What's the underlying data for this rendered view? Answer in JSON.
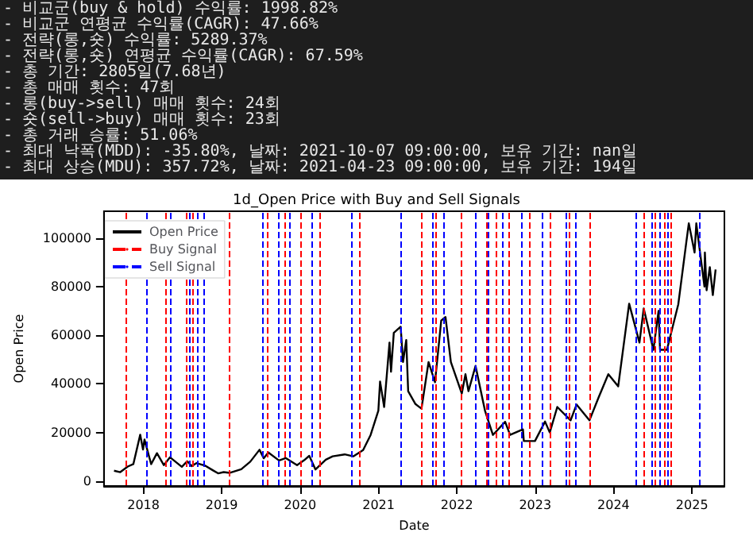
{
  "chart_data": {
    "type": "line",
    "title": "1d_Open Price with Buy and Sell Signals",
    "xlabel": "Date",
    "ylabel": "Open Price",
    "annotations": [
      "- 비교군(buy & hold) 수익률: 1998.82%",
      "- 비교군 연평균 수익률(CAGR): 47.66%",
      "- 전략(롱,숏) 수익률: 5289.37%",
      "- 전략(롱,숏) 연평균 수익률(CAGR): 67.59%",
      "- 총 기간: 2805일(7.68년)",
      "- 총 매매 횟수: 47회",
      "- 롱(buy->sell) 매매 횟수: 24회",
      "- 숏(sell->buy) 매매 횟수: 23회",
      "- 총 거래 승률: 51.06%",
      "- 최대 낙폭(MDD): -35.80%, 날짜: 2021-10-07 09:00:00, 보유 기간: nan일",
      "- 최대 상승(MDU): 357.72%, 날짜: 2021-04-23 09:00:00, 보유 기간: 194일"
    ],
    "x": [
      "2017-08-17",
      "2017-09-15",
      "2017-10-20",
      "2017-11-15",
      "2017-12-17",
      "2017-12-30",
      "2018-01-06",
      "2018-02-06",
      "2018-03-05",
      "2018-04-06",
      "2018-05-05",
      "2018-06-29",
      "2018-07-24",
      "2018-08-14",
      "2018-09-05",
      "2018-10-15",
      "2018-11-20",
      "2018-12-15",
      "2019-01-10",
      "2019-02-08",
      "2019-04-02",
      "2019-05-14",
      "2019-06-26",
      "2019-07-16",
      "2019-08-06",
      "2019-09-25",
      "2019-10-26",
      "2019-12-18",
      "2020-01-20",
      "2020-02-13",
      "2020-03-13",
      "2020-04-30",
      "2020-06-01",
      "2020-07-27",
      "2020-09-05",
      "2020-10-21",
      "2020-11-25",
      "2020-12-31",
      "2021-01-08",
      "2021-01-27",
      "2021-02-21",
      "2021-02-28",
      "2021-03-13",
      "2021-04-14",
      "2021-04-25",
      "2021-05-10",
      "2021-05-19",
      "2021-06-22",
      "2021-07-20",
      "2021-08-22",
      "2021-09-21",
      "2021-10-20",
      "2021-11-09",
      "2021-12-04",
      "2022-01-24",
      "2022-02-10",
      "2022-02-24",
      "2022-03-29",
      "2022-05-12",
      "2022-06-18",
      "2022-08-14",
      "2022-09-06",
      "2022-11-05",
      "2022-11-09",
      "2022-12-31",
      "2023-02-16",
      "2023-03-10",
      "2023-04-14",
      "2023-06-15",
      "2023-07-13",
      "2023-09-11",
      "2023-10-24",
      "2023-12-08",
      "2024-01-23",
      "2024-03-14",
      "2024-05-01",
      "2024-05-21",
      "2024-07-05",
      "2024-07-29",
      "2024-08-05",
      "2024-09-06",
      "2024-10-29",
      "2024-12-05",
      "2024-12-17",
      "2025-01-13",
      "2025-01-21",
      "2025-02-28",
      "2025-03-02",
      "2025-03-10",
      "2025-03-25",
      "2025-04-08",
      "2025-04-21"
    ],
    "series": [
      {
        "name": "Open Price",
        "color": "#000000",
        "values": [
          4300,
          3700,
          6000,
          7000,
          19100,
          13000,
          17100,
          7000,
          11500,
          6600,
          9800,
          5900,
          8200,
          6200,
          7400,
          6400,
          4500,
          3200,
          3700,
          3400,
          4900,
          8000,
          12900,
          9400,
          11800,
          8500,
          9500,
          6600,
          8600,
          10400,
          4800,
          8800,
          10200,
          11000,
          10200,
          12800,
          19000,
          29000,
          41000,
          30500,
          57000,
          45000,
          61000,
          63500,
          49000,
          58000,
          37000,
          31700,
          29800,
          49000,
          40700,
          66000,
          67500,
          49000,
          36000,
          44000,
          37000,
          47400,
          29000,
          19000,
          24400,
          19000,
          21300,
          16500,
          16500,
          24500,
          20000,
          30500,
          25000,
          31500,
          25000,
          34500,
          44000,
          39000,
          73000,
          57000,
          71000,
          54000,
          70000,
          54000,
          54000,
          72700,
          98000,
          106000,
          94000,
          106000,
          80000,
          94000,
          78500,
          88000,
          76500,
          87000
        ]
      }
    ],
    "xlim": [
      "2017-07-01",
      "2025-06-01"
    ],
    "xticks": [
      "2018",
      "2019",
      "2020",
      "2021",
      "2022",
      "2023",
      "2024",
      "2025"
    ],
    "ylim": [
      -2000,
      111000
    ],
    "yticks": [
      0,
      {
        "value": 20000,
        "label": "20000"
      },
      {
        "value": 40000,
        "label": "40000"
      },
      {
        "value": 60000,
        "label": "60000"
      },
      {
        "value": 80000,
        "label": "80000"
      },
      {
        "value": 100000,
        "label": "100000"
      }
    ],
    "ref_lines": [
      {
        "axis": "x",
        "value": "2017-10-11",
        "label": "Buy Signal",
        "color": "#ff0000",
        "line_style": "dashed"
      },
      {
        "axis": "x",
        "value": "2018-01-18",
        "label": "Sell Signal",
        "color": "#0000ff",
        "line_style": "dashed"
      },
      {
        "axis": "x",
        "value": "2018-04-12",
        "color": "#ff0000",
        "line_style": "dashed"
      },
      {
        "axis": "x",
        "value": "2018-05-08",
        "color": "#0000ff",
        "line_style": "dashed"
      },
      {
        "axis": "x",
        "value": "2018-07-16",
        "color": "#ff0000",
        "line_style": "dashed"
      },
      {
        "axis": "x",
        "value": "2018-08-04",
        "color": "#0000ff",
        "line_style": "dashed"
      },
      {
        "axis": "x",
        "value": "2018-08-21",
        "color": "#ff0000",
        "line_style": "dashed"
      },
      {
        "axis": "x",
        "value": "2018-09-13",
        "color": "#0000ff",
        "line_style": "dashed"
      },
      {
        "axis": "x",
        "value": "2018-10-11",
        "color": "#0000ff",
        "line_style": "dashed"
      },
      {
        "axis": "x",
        "value": "2019-02-06",
        "color": "#ff0000",
        "line_style": "dashed"
      },
      {
        "axis": "x",
        "value": "2019-07-13",
        "color": "#0000ff",
        "line_style": "dashed"
      },
      {
        "axis": "x",
        "value": "2019-08-04",
        "color": "#ff0000",
        "line_style": "dashed"
      },
      {
        "axis": "x",
        "value": "2019-09-22",
        "color": "#0000ff",
        "line_style": "dashed"
      },
      {
        "axis": "x",
        "value": "2019-10-23",
        "color": "#ff0000",
        "line_style": "dashed"
      },
      {
        "axis": "x",
        "value": "2019-11-13",
        "color": "#0000ff",
        "line_style": "dashed"
      },
      {
        "axis": "x",
        "value": "2020-01-01",
        "color": "#ff0000",
        "line_style": "dashed"
      },
      {
        "axis": "x",
        "value": "2020-02-22",
        "color": "#0000ff",
        "line_style": "dashed"
      },
      {
        "axis": "x",
        "value": "2020-04-04",
        "color": "#ff0000",
        "line_style": "dashed"
      },
      {
        "axis": "x",
        "value": "2020-08-28",
        "color": "#0000ff",
        "line_style": "dashed"
      },
      {
        "axis": "x",
        "value": "2020-10-04",
        "color": "#ff0000",
        "line_style": "dashed"
      },
      {
        "axis": "x",
        "value": "2021-04-15",
        "color": "#0000ff",
        "line_style": "dashed"
      },
      {
        "axis": "x",
        "value": "2021-07-19",
        "color": "#ff0000",
        "line_style": "dashed"
      },
      {
        "axis": "x",
        "value": "2021-09-06",
        "color": "#0000ff",
        "line_style": "dashed"
      },
      {
        "axis": "x",
        "value": "2021-09-25",
        "color": "#ff0000",
        "line_style": "dashed"
      },
      {
        "axis": "x",
        "value": "2021-11-01",
        "color": "#0000ff",
        "line_style": "dashed"
      },
      {
        "axis": "x",
        "value": "2022-01-20",
        "color": "#ff0000",
        "line_style": "dashed"
      },
      {
        "axis": "x",
        "value": "2022-03-30",
        "color": "#0000ff",
        "line_style": "dashed"
      },
      {
        "axis": "x",
        "value": "2022-05-16",
        "color": "#ff0000",
        "line_style": "dashed"
      },
      {
        "axis": "x",
        "value": "2022-05-27",
        "color": "#0000ff",
        "line_style": "dashed"
      },
      {
        "axis": "x",
        "value": "2022-07-06",
        "color": "#ff0000",
        "line_style": "dashed"
      },
      {
        "axis": "x",
        "value": "2022-08-04",
        "color": "#0000ff",
        "line_style": "dashed"
      },
      {
        "axis": "x",
        "value": "2022-08-30",
        "color": "#ff0000",
        "line_style": "dashed"
      },
      {
        "axis": "x",
        "value": "2022-10-30",
        "color": "#0000ff",
        "line_style": "dashed"
      },
      {
        "axis": "x",
        "value": "2022-12-05",
        "color": "#ff0000",
        "line_style": "dashed"
      },
      {
        "axis": "x",
        "value": "2023-01-30",
        "color": "#0000ff",
        "line_style": "dashed"
      },
      {
        "axis": "x",
        "value": "2023-03-10",
        "color": "#ff0000",
        "line_style": "dashed"
      },
      {
        "axis": "x",
        "value": "2023-05-27",
        "color": "#0000ff",
        "line_style": "dashed"
      },
      {
        "axis": "x",
        "value": "2023-06-10",
        "color": "#ff0000",
        "line_style": "dashed"
      },
      {
        "axis": "x",
        "value": "2023-07-10",
        "color": "#0000ff",
        "line_style": "dashed"
      },
      {
        "axis": "x",
        "value": "2023-09-13",
        "color": "#ff0000",
        "line_style": "dashed"
      },
      {
        "axis": "x",
        "value": "2024-04-12",
        "color": "#0000ff",
        "line_style": "dashed"
      },
      {
        "axis": "x",
        "value": "2024-05-18",
        "color": "#ff0000",
        "line_style": "dashed"
      },
      {
        "axis": "x",
        "value": "2024-06-24",
        "color": "#0000ff",
        "line_style": "dashed"
      },
      {
        "axis": "x",
        "value": "2024-07-15",
        "color": "#ff0000",
        "line_style": "dashed"
      },
      {
        "axis": "x",
        "value": "2024-08-04",
        "color": "#0000ff",
        "line_style": "dashed"
      },
      {
        "axis": "x",
        "value": "2024-08-22",
        "color": "#ff0000",
        "line_style": "dashed"
      },
      {
        "axis": "x",
        "value": "2024-09-06",
        "color": "#0000ff",
        "line_style": "dashed"
      },
      {
        "axis": "x",
        "value": "2024-09-21",
        "color": "#ff0000",
        "line_style": "dashed"
      },
      {
        "axis": "x",
        "value": "2025-02-03",
        "color": "#0000ff",
        "line_style": "dashed"
      }
    ],
    "legend": "top left",
    "grid": false,
    "marker": "none",
    "line_style": "solid"
  }
}
